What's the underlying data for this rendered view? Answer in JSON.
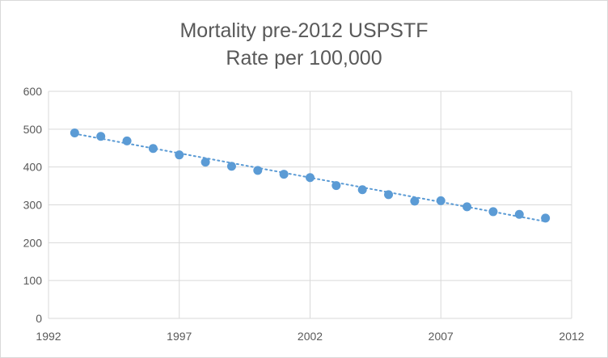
{
  "chart_data": {
    "type": "scatter",
    "title_lines": [
      "Mortality pre-2012 USPSTF",
      "Rate per 100,000"
    ],
    "xlabel": "",
    "ylabel": "",
    "xlim": [
      1992,
      2012
    ],
    "ylim": [
      0,
      600
    ],
    "x_ticks": [
      1992,
      1997,
      2002,
      2007,
      2012
    ],
    "y_ticks": [
      0,
      100,
      200,
      300,
      400,
      500,
      600
    ],
    "grid": true,
    "legend": "none",
    "series": [
      {
        "name": "Rate per 100,000",
        "color": "#5b9bd5",
        "x": [
          1993,
          1994,
          1995,
          1996,
          1997,
          1998,
          1999,
          2000,
          2001,
          2002,
          2003,
          2004,
          2005,
          2006,
          2007,
          2008,
          2009,
          2010,
          2011
        ],
        "y": [
          490,
          481,
          469,
          449,
          432,
          413,
          402,
          391,
          381,
          372,
          351,
          340,
          327,
          310,
          311,
          295,
          282,
          275,
          265
        ]
      }
    ],
    "trendline": {
      "type": "linear",
      "style": "dotted",
      "color": "#5b9bd5",
      "x": [
        1993,
        2011
      ],
      "y": [
        488,
        256
      ]
    }
  }
}
